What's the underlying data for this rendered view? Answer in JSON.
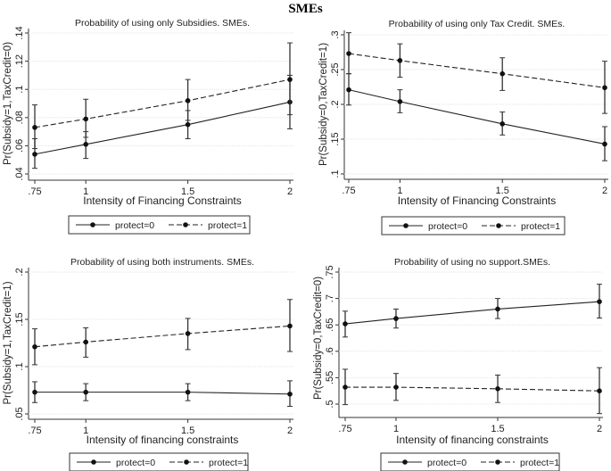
{
  "title": "SMEs",
  "chart_data": [
    {
      "type": "line",
      "title": "Probability of using only Subsidies. SMEs.",
      "xlabel": "Intensity of Financing Constraints",
      "ylabel": "Pr(Subsidy=1,TaxCredit=0)",
      "x": [
        0.75,
        1,
        1.5,
        2
      ],
      "xticks": [
        ".75",
        "1",
        "1.5",
        "2"
      ],
      "ylim": [
        0.04,
        0.14
      ],
      "yticks": [
        0.04,
        0.06,
        0.08,
        0.1,
        0.12,
        0.14
      ],
      "ytick_labels": [
        ".04",
        ".06",
        ".08",
        ".1",
        ".12",
        ".14"
      ],
      "grid": true,
      "legend": "bottom",
      "series": [
        {
          "name": "protect=0",
          "style": "solid",
          "values": [
            0.054,
            0.061,
            0.075,
            0.091
          ],
          "lower": [
            0.044,
            0.051,
            0.065,
            0.072
          ],
          "upper": [
            0.065,
            0.07,
            0.085,
            0.11
          ]
        },
        {
          "name": "protect=1",
          "style": "dashed",
          "values": [
            0.073,
            0.079,
            0.092,
            0.107
          ],
          "lower": [
            0.058,
            0.066,
            0.078,
            0.082
          ],
          "upper": [
            0.089,
            0.093,
            0.107,
            0.133
          ]
        }
      ]
    },
    {
      "type": "line",
      "title": "Probability of using only Tax Credit. SMEs.",
      "xlabel": "Intensity of Financing Constraints",
      "ylabel": "Pr(Subsidy=0,TaxCredit=1)",
      "x": [
        0.75,
        1,
        1.5,
        2
      ],
      "xticks": [
        ".75",
        "1",
        "1.5",
        "2"
      ],
      "ylim": [
        0.1,
        0.3
      ],
      "yticks": [
        0.1,
        0.15,
        0.2,
        0.25,
        0.3
      ],
      "ytick_labels": [
        ".1",
        ".15",
        ".2",
        ".25",
        ".3"
      ],
      "grid": true,
      "legend": "bottom",
      "series": [
        {
          "name": "protect=0",
          "style": "solid",
          "values": [
            0.221,
            0.204,
            0.172,
            0.143
          ],
          "lower": [
            0.199,
            0.188,
            0.156,
            0.119
          ],
          "upper": [
            0.244,
            0.221,
            0.189,
            0.168
          ]
        },
        {
          "name": "protect=1",
          "style": "dashed",
          "values": [
            0.273,
            0.263,
            0.244,
            0.224
          ],
          "lower": [
            0.244,
            0.239,
            0.22,
            0.187
          ],
          "upper": [
            0.303,
            0.287,
            0.267,
            0.262
          ]
        }
      ]
    },
    {
      "type": "line",
      "title": "Probability of using both instruments. SMEs.",
      "xlabel": "Intensity of financing constraints",
      "ylabel": "Pr(Subsidy=1,TaxCredit=1)",
      "x": [
        0.75,
        1,
        1.5,
        2
      ],
      "xticks": [
        ".75",
        "1",
        "1.5",
        "2"
      ],
      "ylim": [
        0.05,
        0.2
      ],
      "yticks": [
        0.05,
        0.1,
        0.15,
        0.2
      ],
      "ytick_labels": [
        ".05",
        ".1",
        ".15",
        ".2"
      ],
      "grid": true,
      "legend": "bottom",
      "series": [
        {
          "name": "protect=0",
          "style": "solid",
          "values": [
            0.073,
            0.073,
            0.073,
            0.071
          ],
          "lower": [
            0.062,
            0.064,
            0.064,
            0.058
          ],
          "upper": [
            0.084,
            0.082,
            0.082,
            0.085
          ]
        },
        {
          "name": "protect=1",
          "style": "dashed",
          "values": [
            0.121,
            0.126,
            0.135,
            0.143
          ],
          "lower": [
            0.102,
            0.11,
            0.118,
            0.116
          ],
          "upper": [
            0.14,
            0.141,
            0.151,
            0.171
          ]
        }
      ]
    },
    {
      "type": "line",
      "title": "Probability of using no support.SMEs.",
      "xlabel": "Intensity of financing constraints",
      "ylabel": "Pr(Subsidy=0,TaxCredit=0)",
      "x": [
        0.75,
        1,
        1.5,
        2
      ],
      "xticks": [
        ".75",
        "1",
        "1.5",
        "2"
      ],
      "ylim": [
        0.48,
        0.75
      ],
      "yticks": [
        0.5,
        0.55,
        0.6,
        0.65,
        0.7,
        0.75
      ],
      "ytick_labels": [
        ".5",
        ".55",
        ".6",
        ".65",
        ".7",
        ".75"
      ],
      "grid": true,
      "legend": "bottom",
      "series": [
        {
          "name": "protect=0",
          "style": "solid",
          "values": [
            0.652,
            0.662,
            0.68,
            0.694
          ],
          "lower": [
            0.627,
            0.644,
            0.662,
            0.663
          ],
          "upper": [
            0.676,
            0.68,
            0.7,
            0.727
          ]
        },
        {
          "name": "protect=1",
          "style": "dashed",
          "values": [
            0.532,
            0.532,
            0.529,
            0.525
          ],
          "lower": [
            0.499,
            0.507,
            0.503,
            0.482
          ],
          "upper": [
            0.566,
            0.558,
            0.555,
            0.569
          ]
        }
      ]
    }
  ]
}
